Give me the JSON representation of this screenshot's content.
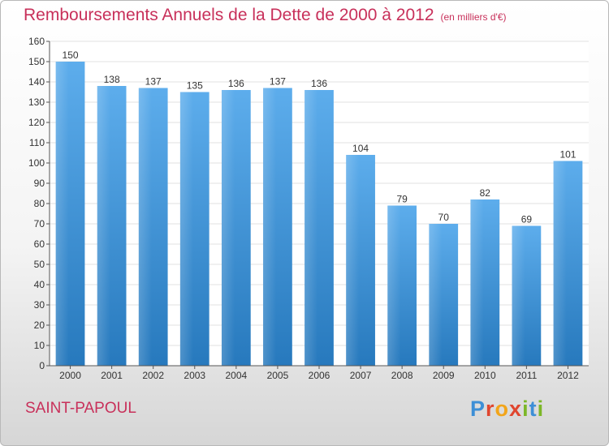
{
  "header": {
    "title": "Remboursements Annuels de la Dette de 2000 à 2012",
    "unit": "(en milliers d'€)"
  },
  "location": "SAINT-PAPOUL",
  "logo": {
    "text": "Proxiti",
    "letters": [
      {
        "ch": "P",
        "color": "#3d8fd6"
      },
      {
        "ch": "r",
        "color": "#e0462f"
      },
      {
        "ch": "o",
        "color": "#f2a51a"
      },
      {
        "ch": "x",
        "color": "#e0462f"
      },
      {
        "ch": "i",
        "color": "#7cb728"
      },
      {
        "ch": "t",
        "color": "#3d8fd6"
      },
      {
        "ch": "i",
        "color": "#7cb728"
      }
    ]
  },
  "colors": {
    "title": "#c8305a",
    "bar_top": "#5dadec",
    "bar_bottom": "#2779bd",
    "grid": "#e2e2e2",
    "axis": "#555555"
  },
  "chart_data": {
    "type": "bar",
    "categories": [
      "2000",
      "2001",
      "2002",
      "2003",
      "2004",
      "2005",
      "2006",
      "2007",
      "2008",
      "2009",
      "2010",
      "2011",
      "2012"
    ],
    "values": [
      150,
      138,
      137,
      135,
      136,
      137,
      136,
      104,
      79,
      70,
      82,
      69,
      101
    ],
    "data_labels": [
      "150",
      "138",
      "137",
      "135",
      "136",
      "137",
      "136",
      "104",
      "79",
      "70",
      "82",
      "69",
      "101"
    ],
    "ylim": [
      0,
      160
    ],
    "yticks": [
      "0",
      "10",
      "20",
      "30",
      "40",
      "50",
      "60",
      "70",
      "80",
      "90",
      "100",
      "110",
      "120",
      "130",
      "140",
      "150",
      "160"
    ],
    "grid": true,
    "xlabel": "",
    "ylabel": ""
  }
}
